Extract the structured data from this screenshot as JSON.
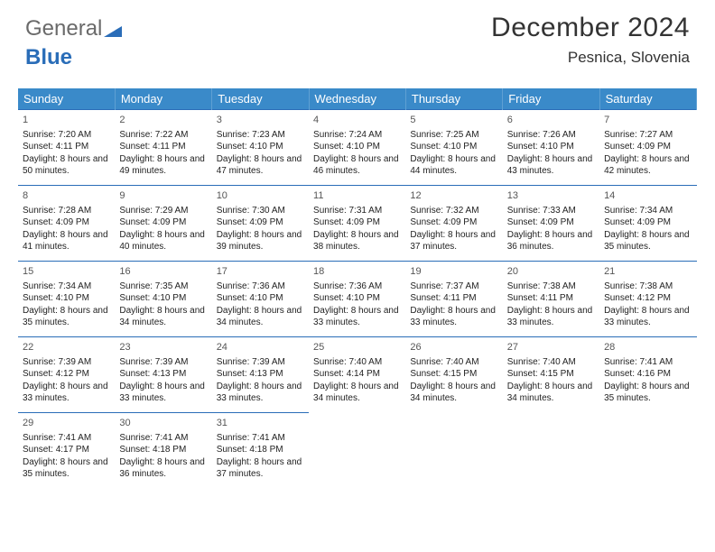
{
  "logo": {
    "text1": "General",
    "text2": "Blue"
  },
  "header": {
    "month_title": "December 2024",
    "location": "Pesnica, Slovenia"
  },
  "colors": {
    "header_bg": "#3a8ac9",
    "border": "#2a6db8",
    "text": "#222222",
    "bg": "#ffffff"
  },
  "day_headers": [
    "Sunday",
    "Monday",
    "Tuesday",
    "Wednesday",
    "Thursday",
    "Friday",
    "Saturday"
  ],
  "days": [
    {
      "n": "1",
      "sunrise": "7:20 AM",
      "sunset": "4:11 PM",
      "day_h": "8",
      "day_m": "50"
    },
    {
      "n": "2",
      "sunrise": "7:22 AM",
      "sunset": "4:11 PM",
      "day_h": "8",
      "day_m": "49"
    },
    {
      "n": "3",
      "sunrise": "7:23 AM",
      "sunset": "4:10 PM",
      "day_h": "8",
      "day_m": "47"
    },
    {
      "n": "4",
      "sunrise": "7:24 AM",
      "sunset": "4:10 PM",
      "day_h": "8",
      "day_m": "46"
    },
    {
      "n": "5",
      "sunrise": "7:25 AM",
      "sunset": "4:10 PM",
      "day_h": "8",
      "day_m": "44"
    },
    {
      "n": "6",
      "sunrise": "7:26 AM",
      "sunset": "4:10 PM",
      "day_h": "8",
      "day_m": "43"
    },
    {
      "n": "7",
      "sunrise": "7:27 AM",
      "sunset": "4:09 PM",
      "day_h": "8",
      "day_m": "42"
    },
    {
      "n": "8",
      "sunrise": "7:28 AM",
      "sunset": "4:09 PM",
      "day_h": "8",
      "day_m": "41"
    },
    {
      "n": "9",
      "sunrise": "7:29 AM",
      "sunset": "4:09 PM",
      "day_h": "8",
      "day_m": "40"
    },
    {
      "n": "10",
      "sunrise": "7:30 AM",
      "sunset": "4:09 PM",
      "day_h": "8",
      "day_m": "39"
    },
    {
      "n": "11",
      "sunrise": "7:31 AM",
      "sunset": "4:09 PM",
      "day_h": "8",
      "day_m": "38"
    },
    {
      "n": "12",
      "sunrise": "7:32 AM",
      "sunset": "4:09 PM",
      "day_h": "8",
      "day_m": "37"
    },
    {
      "n": "13",
      "sunrise": "7:33 AM",
      "sunset": "4:09 PM",
      "day_h": "8",
      "day_m": "36"
    },
    {
      "n": "14",
      "sunrise": "7:34 AM",
      "sunset": "4:09 PM",
      "day_h": "8",
      "day_m": "35"
    },
    {
      "n": "15",
      "sunrise": "7:34 AM",
      "sunset": "4:10 PM",
      "day_h": "8",
      "day_m": "35"
    },
    {
      "n": "16",
      "sunrise": "7:35 AM",
      "sunset": "4:10 PM",
      "day_h": "8",
      "day_m": "34"
    },
    {
      "n": "17",
      "sunrise": "7:36 AM",
      "sunset": "4:10 PM",
      "day_h": "8",
      "day_m": "34"
    },
    {
      "n": "18",
      "sunrise": "7:36 AM",
      "sunset": "4:10 PM",
      "day_h": "8",
      "day_m": "33"
    },
    {
      "n": "19",
      "sunrise": "7:37 AM",
      "sunset": "4:11 PM",
      "day_h": "8",
      "day_m": "33"
    },
    {
      "n": "20",
      "sunrise": "7:38 AM",
      "sunset": "4:11 PM",
      "day_h": "8",
      "day_m": "33"
    },
    {
      "n": "21",
      "sunrise": "7:38 AM",
      "sunset": "4:12 PM",
      "day_h": "8",
      "day_m": "33"
    },
    {
      "n": "22",
      "sunrise": "7:39 AM",
      "sunset": "4:12 PM",
      "day_h": "8",
      "day_m": "33"
    },
    {
      "n": "23",
      "sunrise": "7:39 AM",
      "sunset": "4:13 PM",
      "day_h": "8",
      "day_m": "33"
    },
    {
      "n": "24",
      "sunrise": "7:39 AM",
      "sunset": "4:13 PM",
      "day_h": "8",
      "day_m": "33"
    },
    {
      "n": "25",
      "sunrise": "7:40 AM",
      "sunset": "4:14 PM",
      "day_h": "8",
      "day_m": "34"
    },
    {
      "n": "26",
      "sunrise": "7:40 AM",
      "sunset": "4:15 PM",
      "day_h": "8",
      "day_m": "34"
    },
    {
      "n": "27",
      "sunrise": "7:40 AM",
      "sunset": "4:15 PM",
      "day_h": "8",
      "day_m": "34"
    },
    {
      "n": "28",
      "sunrise": "7:41 AM",
      "sunset": "4:16 PM",
      "day_h": "8",
      "day_m": "35"
    },
    {
      "n": "29",
      "sunrise": "7:41 AM",
      "sunset": "4:17 PM",
      "day_h": "8",
      "day_m": "35"
    },
    {
      "n": "30",
      "sunrise": "7:41 AM",
      "sunset": "4:18 PM",
      "day_h": "8",
      "day_m": "36"
    },
    {
      "n": "31",
      "sunrise": "7:41 AM",
      "sunset": "4:18 PM",
      "day_h": "8",
      "day_m": "37"
    }
  ],
  "labels": {
    "sunrise": "Sunrise:",
    "sunset": "Sunset:",
    "daylight_prefix": "Daylight:",
    "hours_word": "hours",
    "and_word": "and",
    "minutes_word": "minutes."
  }
}
